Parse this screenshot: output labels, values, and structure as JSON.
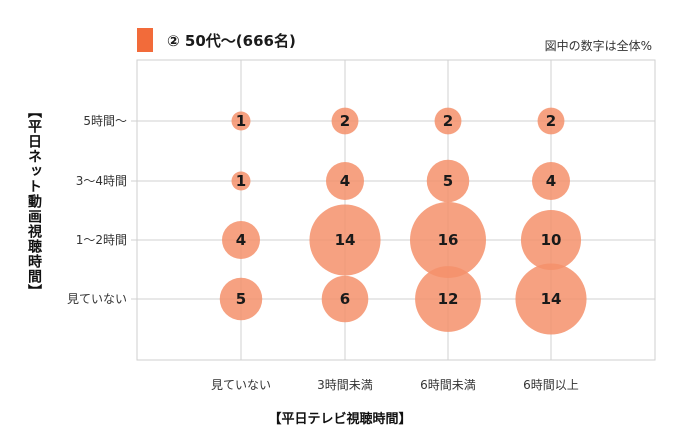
{
  "legend": {
    "label": "② 50代～(666名)",
    "color": "#f26b3a"
  },
  "note": "図中の数字は全体%",
  "chart_data": {
    "type": "bubble",
    "title": "",
    "xlabel": "【平日テレビ視聴時間】",
    "ylabel": "【平日ネット動画視聴時間】",
    "x_categories": [
      "見ていない",
      "3時間未満",
      "6時間未満",
      "6時間以上"
    ],
    "y_categories": [
      "5時間～",
      "3～4時間",
      "1～2時間",
      "見ていない"
    ],
    "bubble_color": "#f4916b",
    "grid": true,
    "series": [
      {
        "name": "② 50代～(666名)",
        "points": [
          {
            "x": "見ていない",
            "y": "5時間～",
            "value": 1
          },
          {
            "x": "3時間未満",
            "y": "5時間～",
            "value": 2
          },
          {
            "x": "6時間未満",
            "y": "5時間～",
            "value": 2
          },
          {
            "x": "6時間以上",
            "y": "5時間～",
            "value": 2
          },
          {
            "x": "見ていない",
            "y": "3～4時間",
            "value": 1
          },
          {
            "x": "3時間未満",
            "y": "3～4時間",
            "value": 4
          },
          {
            "x": "6時間未満",
            "y": "3～4時間",
            "value": 5
          },
          {
            "x": "6時間以上",
            "y": "3～4時間",
            "value": 4
          },
          {
            "x": "見ていない",
            "y": "1～2時間",
            "value": 4
          },
          {
            "x": "3時間未満",
            "y": "1～2時間",
            "value": 14
          },
          {
            "x": "6時間未満",
            "y": "1～2時間",
            "value": 16
          },
          {
            "x": "6時間以上",
            "y": "1～2時間",
            "value": 10
          },
          {
            "x": "見ていない",
            "y": "見ていない",
            "value": 5
          },
          {
            "x": "3時間未満",
            "y": "見ていない",
            "value": 6
          },
          {
            "x": "6時間未満",
            "y": "見ていない",
            "value": 12
          },
          {
            "x": "6時間以上",
            "y": "見ていない",
            "value": 14
          }
        ]
      }
    ]
  }
}
